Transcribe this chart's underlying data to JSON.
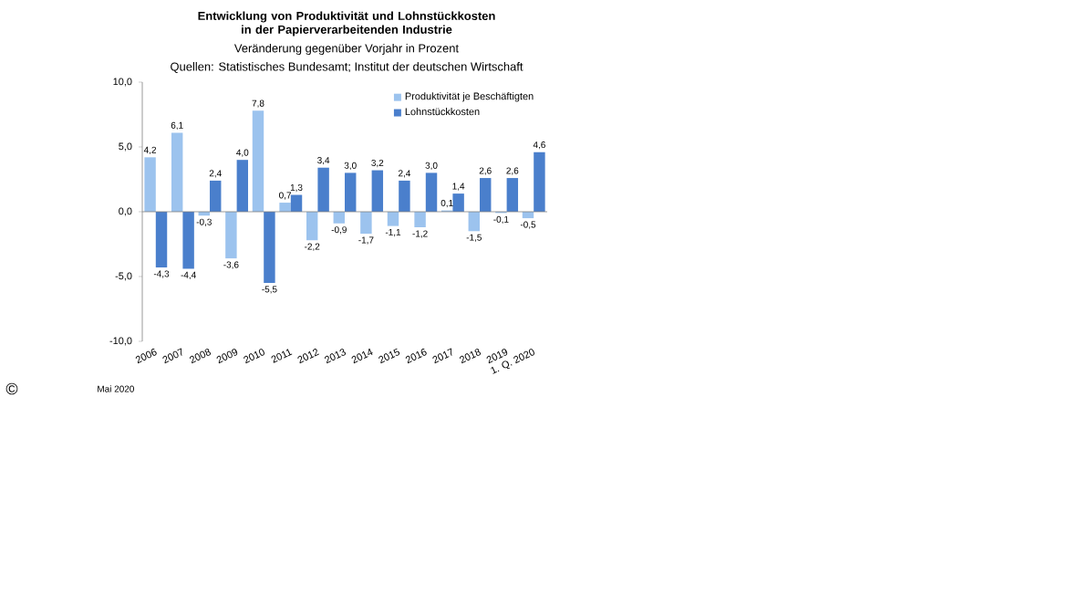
{
  "chart_data": {
    "type": "bar",
    "title": "Entwicklung von Produktivität und Lohnstückkosten in der Papierverarbeitenden Industrie",
    "subtitle": "Veränderung gegenüber Vorjahr in Prozent",
    "annotations": [
      "Quellen: Statistisches Bundesamt; Institut der deutschen Wirtschaft",
      "©",
      "Mai 2020"
    ],
    "categories": [
      "2006",
      "2007",
      "2008",
      "2009",
      "2010",
      "2011",
      "2012",
      "2013",
      "2014",
      "2015",
      "2016",
      "2017",
      "2018",
      "2019",
      "1. Q. 2020"
    ],
    "series": [
      {
        "name": "Produktivität je Beschäftigten",
        "color": "#9cc3ee",
        "values": [
          4.2,
          6.1,
          -0.3,
          -3.6,
          7.8,
          0.7,
          -2.2,
          -0.9,
          -1.7,
          -1.1,
          -1.2,
          0.1,
          -1.5,
          -0.1,
          -0.5
        ],
        "value_labels": [
          "4,2",
          "6,1",
          "-0,3",
          "-3,6",
          "7,8",
          "0,7",
          "-2,2",
          "-0,9",
          "-1,7",
          "-1,1",
          "-1,2",
          "0,1",
          "-1,5",
          "-0,1",
          "-0,5"
        ]
      },
      {
        "name": "Lohnstückkosten",
        "color": "#4a7fcc",
        "values": [
          -4.3,
          -4.4,
          2.4,
          4.0,
          -5.5,
          1.3,
          3.4,
          3.0,
          3.2,
          2.4,
          3.0,
          1.4,
          2.6,
          2.6,
          4.6
        ],
        "value_labels": [
          "-4,3",
          "-4,4",
          "2,4",
          "4,0",
          "-5,5",
          "1,3",
          "3,4",
          "3,0",
          "3,2",
          "2,4",
          "3,0",
          "1,4",
          "2,6",
          "2,6",
          "4,6"
        ]
      }
    ],
    "ylim": [
      -10,
      10
    ],
    "yticks": [
      {
        "value": -10,
        "label": "-10,0"
      },
      {
        "value": -5,
        "label": "-5,0"
      },
      {
        "value": 0,
        "label": "0,0"
      },
      {
        "value": 5,
        "label": "5,0"
      },
      {
        "value": 10,
        "label": "10,0"
      }
    ],
    "legend": "top right"
  }
}
